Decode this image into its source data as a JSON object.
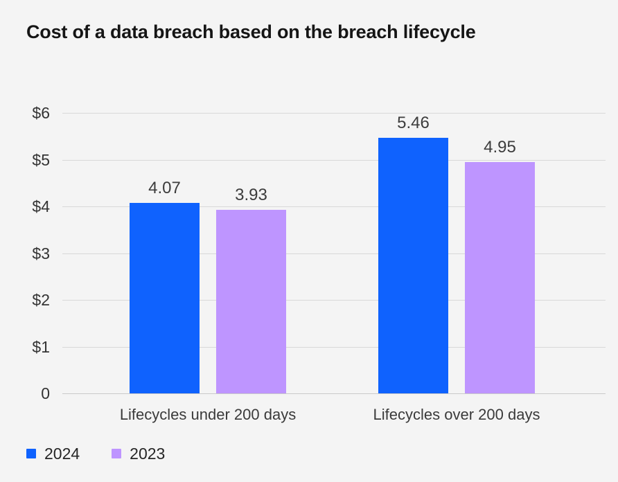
{
  "chart_data": {
    "type": "bar",
    "title": "Cost of a data breach based on the breach lifecycle",
    "categories": [
      "Lifecycles under 200 days",
      "Lifecycles over 200 days"
    ],
    "series": [
      {
        "name": "2024",
        "color": "#0f62fe",
        "values": [
          4.07,
          5.46
        ]
      },
      {
        "name": "2023",
        "color": "#be95ff",
        "values": [
          3.93,
          4.95
        ]
      }
    ],
    "value_labels": [
      [
        "4.07",
        "5.46"
      ],
      [
        "3.93",
        "4.95"
      ]
    ],
    "y_ticks": [
      "$6",
      "$5",
      "$4",
      "$3",
      "$2",
      "$1",
      "0"
    ],
    "ylim": [
      0,
      6
    ],
    "grid": "horizontal",
    "legend_position": "bottom-left",
    "colors": {
      "background": "#f4f4f4",
      "gridline": "#d8d8d8",
      "title_text": "#151515",
      "label_text": "#3c3c3c",
      "series_2024": "#0f62fe",
      "series_2023": "#be95ff"
    }
  }
}
